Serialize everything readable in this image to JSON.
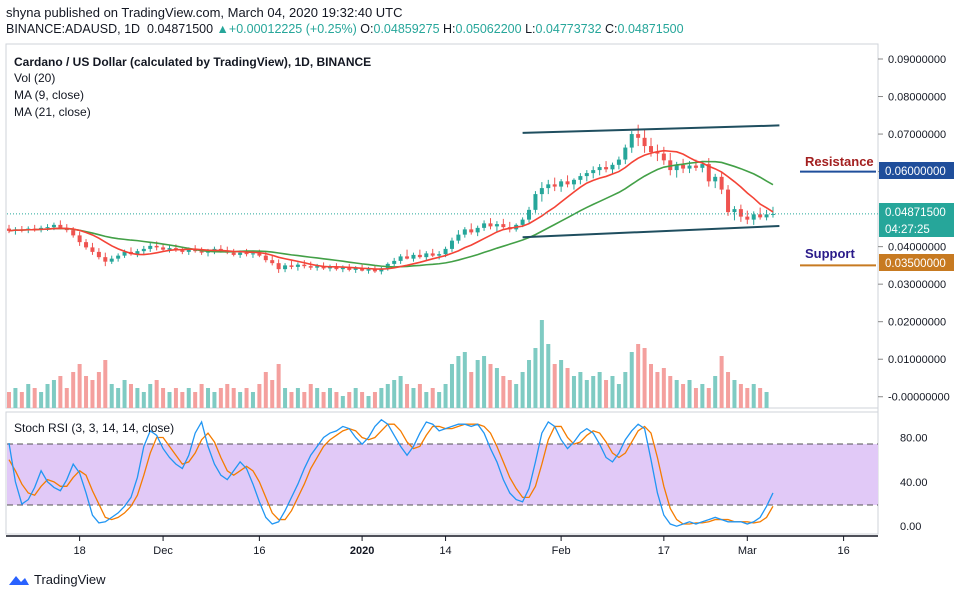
{
  "header": {
    "published": "shyna published on TradingView.com, March 04, 2020 19:32:40 UTC",
    "symbol": "BINANCE:ADAUSD, 1D",
    "last": "0.04871500",
    "change_arrow": "▲",
    "change": "+0.00012225 (+0.25%)",
    "o_label": "O:",
    "o": "0.04859275",
    "h_label": "H:",
    "h": "0.05062200",
    "l_label": "L:",
    "l": "0.04773732",
    "c_label": "C:",
    "c": "0.04871500"
  },
  "legend": {
    "title": "Cardano / US Dollar (calculated by TradingView), 1D, BINANCE",
    "vol": "Vol (20)",
    "ma9": "MA (9, close)",
    "ma21": "MA (21, close)",
    "rsi": "Stoch RSI (3, 3, 14, 14, close)"
  },
  "annotations": {
    "resistance": "Resistance",
    "support": "Support"
  },
  "price_badges": {
    "resistance": "0.06000000",
    "current": "0.04871500",
    "countdown": "04:27:25",
    "support": "0.03500000"
  },
  "footer": {
    "brand": "TradingView"
  },
  "colors": {
    "up": "#26a69a",
    "down": "#ef5350",
    "vol_up": "#7fcbc3",
    "vol_down": "#f4a09e",
    "ma9": "#f44336",
    "ma21": "#43a047",
    "channel": "#1f4e5f",
    "resistance": "#a32020",
    "resistance_line": "#1f4e9b",
    "support": "#2a1a8a",
    "support_line": "#c77a21",
    "stoch_k": "#2196f3",
    "stoch_d": "#f57c00",
    "rsi_band": "#e1c9f7"
  },
  "chart_data": [
    {
      "type": "candlestick",
      "title": "Cardano / US Dollar (calculated by TradingView), 1D, BINANCE",
      "x_ticks": [
        "18",
        "Dec",
        "16",
        "2020",
        "14",
        "Feb",
        "17",
        "Mar",
        "16"
      ],
      "y_ticks": [
        "0.09000000",
        "0.08000000",
        "0.07000000",
        "0.06000000",
        "0.04000000",
        "0.03000000",
        "0.02000000",
        "0.01000000",
        "-0.00000000"
      ],
      "ylim": [
        -0.003,
        0.094
      ],
      "x_start": "2019-11-07",
      "ohlc": [
        [
          0.0448,
          0.0458,
          0.0436,
          0.0442
        ],
        [
          0.0442,
          0.0452,
          0.0432,
          0.0446
        ],
        [
          0.0446,
          0.0455,
          0.0438,
          0.0444
        ],
        [
          0.0444,
          0.0454,
          0.0436,
          0.0448
        ],
        [
          0.0448,
          0.0458,
          0.044,
          0.0446
        ],
        [
          0.0446,
          0.0456,
          0.0438,
          0.045
        ],
        [
          0.045,
          0.046,
          0.0442,
          0.0452
        ],
        [
          0.0452,
          0.0464,
          0.0444,
          0.0458
        ],
        [
          0.0458,
          0.047,
          0.0446,
          0.045
        ],
        [
          0.045,
          0.046,
          0.0438,
          0.0444
        ],
        [
          0.0444,
          0.0452,
          0.0424,
          0.043
        ],
        [
          0.043,
          0.044,
          0.0402,
          0.0412
        ],
        [
          0.0412,
          0.042,
          0.0392,
          0.0398
        ],
        [
          0.0398,
          0.041,
          0.0378,
          0.0386
        ],
        [
          0.0386,
          0.0396,
          0.0366,
          0.0372
        ],
        [
          0.0372,
          0.0384,
          0.0348,
          0.036
        ],
        [
          0.036,
          0.0376,
          0.0354,
          0.0368
        ],
        [
          0.0368,
          0.0382,
          0.036,
          0.0376
        ],
        [
          0.0376,
          0.0392,
          0.037,
          0.0386
        ],
        [
          0.0386,
          0.0398,
          0.0376,
          0.038
        ],
        [
          0.038,
          0.0394,
          0.0372,
          0.0388
        ],
        [
          0.0388,
          0.0402,
          0.038,
          0.0394
        ],
        [
          0.0394,
          0.041,
          0.0386,
          0.0402
        ],
        [
          0.0402,
          0.0414,
          0.039,
          0.0398
        ],
        [
          0.0398,
          0.0408,
          0.0388,
          0.0392
        ],
        [
          0.0392,
          0.0404,
          0.0384,
          0.0396
        ],
        [
          0.0396,
          0.0406,
          0.0386,
          0.039
        ],
        [
          0.039,
          0.04,
          0.038,
          0.0386
        ],
        [
          0.0386,
          0.0398,
          0.0378,
          0.0392
        ],
        [
          0.0392,
          0.0404,
          0.0384,
          0.0388
        ],
        [
          0.0388,
          0.0398,
          0.0378,
          0.0384
        ],
        [
          0.0384,
          0.0394,
          0.0374,
          0.0388
        ],
        [
          0.0388,
          0.04,
          0.038,
          0.0394
        ],
        [
          0.0394,
          0.0404,
          0.0384,
          0.039
        ],
        [
          0.039,
          0.04,
          0.038,
          0.0384
        ],
        [
          0.0384,
          0.0394,
          0.0374,
          0.0378
        ],
        [
          0.0378,
          0.039,
          0.037,
          0.0384
        ],
        [
          0.0384,
          0.0394,
          0.0374,
          0.038
        ],
        [
          0.038,
          0.039,
          0.037,
          0.0382
        ],
        [
          0.0382,
          0.0392,
          0.0372,
          0.0376
        ],
        [
          0.0376,
          0.0386,
          0.0358,
          0.0364
        ],
        [
          0.0364,
          0.0376,
          0.035,
          0.0356
        ],
        [
          0.0356,
          0.0366,
          0.033,
          0.034
        ],
        [
          0.034,
          0.0356,
          0.0332,
          0.035
        ],
        [
          0.035,
          0.0362,
          0.034,
          0.0346
        ],
        [
          0.0346,
          0.0358,
          0.0336,
          0.0352
        ],
        [
          0.0352,
          0.0364,
          0.0342,
          0.0348
        ],
        [
          0.0348,
          0.036,
          0.0338,
          0.0344
        ],
        [
          0.0344,
          0.0354,
          0.0336,
          0.0348
        ],
        [
          0.0348,
          0.0358,
          0.0338,
          0.0342
        ],
        [
          0.0342,
          0.0352,
          0.0334,
          0.0346
        ],
        [
          0.0346,
          0.0356,
          0.0336,
          0.034
        ],
        [
          0.034,
          0.035,
          0.0332,
          0.0344
        ],
        [
          0.0344,
          0.0354,
          0.0334,
          0.0338
        ],
        [
          0.0338,
          0.0348,
          0.033,
          0.0342
        ],
        [
          0.0342,
          0.0352,
          0.0334,
          0.0336
        ],
        [
          0.0336,
          0.0346,
          0.0328,
          0.034
        ],
        [
          0.034,
          0.035,
          0.033,
          0.0334
        ],
        [
          0.0334,
          0.0346,
          0.0326,
          0.0342
        ],
        [
          0.0342,
          0.0358,
          0.0336,
          0.0354
        ],
        [
          0.0354,
          0.037,
          0.0348,
          0.0362
        ],
        [
          0.0362,
          0.038,
          0.0354,
          0.0374
        ],
        [
          0.0374,
          0.0392,
          0.0366,
          0.0368
        ],
        [
          0.0368,
          0.0384,
          0.036,
          0.0378
        ],
        [
          0.0378,
          0.0392,
          0.0368,
          0.0372
        ],
        [
          0.0372,
          0.0388,
          0.0364,
          0.0382
        ],
        [
          0.0382,
          0.0394,
          0.0372,
          0.0376
        ],
        [
          0.0376,
          0.0388,
          0.0366,
          0.038
        ],
        [
          0.038,
          0.04,
          0.0372,
          0.0394
        ],
        [
          0.0394,
          0.0424,
          0.0386,
          0.0416
        ],
        [
          0.0416,
          0.0444,
          0.0408,
          0.0432
        ],
        [
          0.0432,
          0.0452,
          0.0424,
          0.0446
        ],
        [
          0.0446,
          0.0462,
          0.0432,
          0.0438
        ],
        [
          0.0438,
          0.0456,
          0.0428,
          0.045
        ],
        [
          0.045,
          0.047,
          0.0442,
          0.0462
        ],
        [
          0.0462,
          0.0476,
          0.0446,
          0.0454
        ],
        [
          0.0454,
          0.0468,
          0.044,
          0.046
        ],
        [
          0.046,
          0.0474,
          0.0448,
          0.0452
        ],
        [
          0.0452,
          0.0466,
          0.0438,
          0.0446
        ],
        [
          0.0446,
          0.0462,
          0.044,
          0.0458
        ],
        [
          0.0458,
          0.0478,
          0.0452,
          0.0472
        ],
        [
          0.0472,
          0.0506,
          0.0464,
          0.0498
        ],
        [
          0.0498,
          0.0548,
          0.049,
          0.054
        ],
        [
          0.054,
          0.0572,
          0.052,
          0.0556
        ],
        [
          0.0556,
          0.0578,
          0.054,
          0.0566
        ],
        [
          0.0566,
          0.0584,
          0.0548,
          0.056
        ],
        [
          0.056,
          0.058,
          0.0546,
          0.0574
        ],
        [
          0.0574,
          0.059,
          0.0558,
          0.0566
        ],
        [
          0.0566,
          0.0582,
          0.0552,
          0.0578
        ],
        [
          0.0578,
          0.0596,
          0.0566,
          0.0588
        ],
        [
          0.0588,
          0.0604,
          0.0574,
          0.0596
        ],
        [
          0.0596,
          0.0614,
          0.0582,
          0.0604
        ],
        [
          0.0604,
          0.062,
          0.059,
          0.0612
        ],
        [
          0.0612,
          0.0628,
          0.0598,
          0.0606
        ],
        [
          0.0606,
          0.0624,
          0.0594,
          0.0618
        ],
        [
          0.0618,
          0.064,
          0.0606,
          0.0632
        ],
        [
          0.0632,
          0.0672,
          0.062,
          0.0664
        ],
        [
          0.0664,
          0.0708,
          0.065,
          0.07
        ],
        [
          0.07,
          0.0725,
          0.0668,
          0.069
        ],
        [
          0.069,
          0.0712,
          0.065,
          0.0668
        ],
        [
          0.0668,
          0.069,
          0.064,
          0.0652
        ],
        [
          0.0652,
          0.0672,
          0.0628,
          0.0648
        ],
        [
          0.0648,
          0.0666,
          0.0618,
          0.063
        ],
        [
          0.063,
          0.065,
          0.059,
          0.0604
        ],
        [
          0.0604,
          0.0626,
          0.0584,
          0.0618
        ],
        [
          0.0618,
          0.0634,
          0.0596,
          0.0608
        ],
        [
          0.0608,
          0.0628,
          0.0596,
          0.0616
        ],
        [
          0.0616,
          0.0632,
          0.0602,
          0.061
        ],
        [
          0.061,
          0.0628,
          0.0598,
          0.062
        ],
        [
          0.062,
          0.0636,
          0.056,
          0.0574
        ],
        [
          0.0574,
          0.0594,
          0.0556,
          0.0586
        ],
        [
          0.0586,
          0.06,
          0.054,
          0.0552
        ],
        [
          0.0552,
          0.0564,
          0.0482,
          0.0492
        ],
        [
          0.0492,
          0.0508,
          0.047,
          0.05
        ],
        [
          0.05,
          0.0512,
          0.0466,
          0.048
        ],
        [
          0.048,
          0.0496,
          0.046,
          0.0472
        ],
        [
          0.0472,
          0.0494,
          0.0458,
          0.0486
        ],
        [
          0.0486,
          0.0504,
          0.0472,
          0.0478
        ],
        [
          0.0478,
          0.0498,
          0.047,
          0.0486
        ],
        [
          0.04859275,
          0.050622,
          0.04773732,
          0.048715
        ]
      ],
      "volume": [
        0.004,
        0.005,
        0.004,
        0.006,
        0.005,
        0.004,
        0.006,
        0.007,
        0.008,
        0.005,
        0.009,
        0.011,
        0.008,
        0.007,
        0.009,
        0.012,
        0.006,
        0.005,
        0.007,
        0.006,
        0.005,
        0.004,
        0.006,
        0.007,
        0.005,
        0.004,
        0.005,
        0.004,
        0.005,
        0.004,
        0.006,
        0.005,
        0.004,
        0.005,
        0.006,
        0.005,
        0.004,
        0.005,
        0.004,
        0.006,
        0.009,
        0.007,
        0.011,
        0.005,
        0.004,
        0.005,
        0.004,
        0.006,
        0.005,
        0.004,
        0.005,
        0.004,
        0.003,
        0.004,
        0.005,
        0.004,
        0.003,
        0.004,
        0.005,
        0.006,
        0.007,
        0.008,
        0.006,
        0.005,
        0.006,
        0.004,
        0.005,
        0.004,
        0.006,
        0.011,
        0.013,
        0.014,
        0.009,
        0.012,
        0.013,
        0.011,
        0.01,
        0.008,
        0.007,
        0.006,
        0.009,
        0.012,
        0.015,
        0.022,
        0.016,
        0.011,
        0.012,
        0.01,
        0.008,
        0.009,
        0.007,
        0.008,
        0.009,
        0.007,
        0.008,
        0.006,
        0.009,
        0.014,
        0.016,
        0.015,
        0.011,
        0.009,
        0.01,
        0.008,
        0.007,
        0.006,
        0.007,
        0.005,
        0.006,
        0.005,
        0.008,
        0.013,
        0.009,
        0.007,
        0.006,
        0.005,
        0.006,
        0.005,
        0.004
      ],
      "ma9_color": "#f44336",
      "ma21_color": "#43a047",
      "channel_upper": [
        [
          0.0703,
          0.0723
        ]
      ],
      "channel_lower": [
        [
          0.0425,
          0.0455
        ]
      ],
      "resistance_level": 0.06,
      "support_level": 0.035
    },
    {
      "type": "line",
      "title": "Stoch RSI (3, 3, 14, 14, close)",
      "y_ticks": [
        "80.00",
        "40.00",
        "0.00"
      ],
      "ylim": [
        -7,
        103
      ],
      "bands": [
        20,
        80
      ],
      "series": [
        {
          "name": "K",
          "values": [
            75,
            40,
            20,
            24,
            35,
            50,
            40,
            35,
            32,
            42,
            56,
            48,
            30,
            10,
            3,
            4,
            8,
            12,
            18,
            26,
            44,
            72,
            86,
            82,
            70,
            62,
            56,
            52,
            64,
            84,
            94,
            72,
            56,
            46,
            42,
            50,
            58,
            52,
            38,
            22,
            8,
            2,
            4,
            14,
            26,
            38,
            52,
            64,
            72,
            80,
            84,
            86,
            90,
            88,
            80,
            74,
            80,
            90,
            96,
            92,
            82,
            72,
            64,
            72,
            84,
            94,
            92,
            86,
            88,
            90,
            92,
            92,
            90,
            92,
            84,
            70,
            58,
            42,
            30,
            24,
            22,
            34,
            58,
            84,
            94,
            90,
            78,
            70,
            76,
            84,
            88,
            84,
            74,
            62,
            58,
            66,
            78,
            86,
            92,
            88,
            60,
            30,
            10,
            2,
            0,
            2,
            4,
            2,
            4,
            6,
            8,
            6,
            4,
            4,
            4,
            2,
            4,
            8,
            18,
            30
          ]
        },
        {
          "name": "D",
          "values": [
            60,
            50,
            38,
            30,
            28,
            36,
            42,
            40,
            36,
            36,
            44,
            50,
            46,
            32,
            20,
            8,
            6,
            8,
            12,
            18,
            28,
            46,
            66,
            80,
            80,
            72,
            64,
            56,
            58,
            66,
            78,
            84,
            76,
            62,
            50,
            46,
            50,
            54,
            50,
            40,
            26,
            12,
            6,
            6,
            14,
            26,
            38,
            52,
            62,
            72,
            78,
            82,
            86,
            88,
            86,
            80,
            78,
            80,
            86,
            92,
            92,
            86,
            76,
            70,
            72,
            82,
            90,
            90,
            88,
            88,
            90,
            92,
            92,
            92,
            90,
            84,
            72,
            58,
            44,
            34,
            26,
            26,
            36,
            56,
            78,
            90,
            90,
            80,
            74,
            76,
            82,
            86,
            84,
            76,
            66,
            62,
            66,
            76,
            86,
            90,
            84,
            62,
            36,
            16,
            6,
            2,
            2,
            3,
            3,
            4,
            6,
            6,
            6,
            4,
            4,
            4,
            3,
            4,
            8,
            18
          ]
        }
      ]
    }
  ]
}
